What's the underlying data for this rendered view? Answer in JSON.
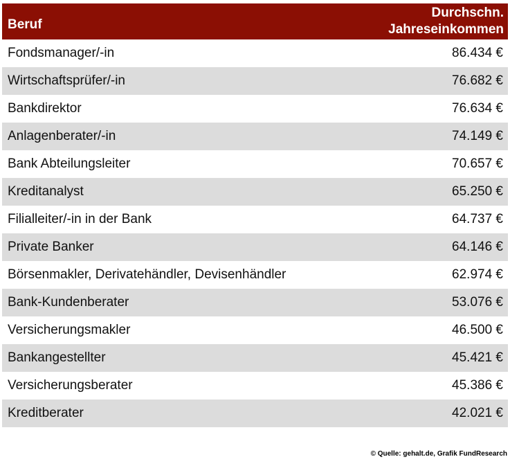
{
  "colors": {
    "header_bg": "#8B0F04",
    "header_text": "#FFFFFF",
    "row_bg": "#FFFFFF",
    "row_alt_bg": "#DCDCDC",
    "text": "#111111"
  },
  "table": {
    "header": {
      "profession": "Beruf",
      "income": "Durchschn. Jahreseinkommen"
    },
    "rows": [
      {
        "beruf": "Fondsmanager/-in",
        "einkommen": "86.434 €"
      },
      {
        "beruf": "Wirtschaftsprüfer/-in",
        "einkommen": "76.682 €"
      },
      {
        "beruf": "Bankdirektor",
        "einkommen": "76.634 €"
      },
      {
        "beruf": "Anlagenberater/-in",
        "einkommen": "74.149 €"
      },
      {
        "beruf": "Bank Abteilungsleiter",
        "einkommen": "70.657 €"
      },
      {
        "beruf": "Kreditanalyst",
        "einkommen": "65.250 €"
      },
      {
        "beruf": "Filialleiter/-in in der Bank",
        "einkommen": "64.737 €"
      },
      {
        "beruf": "Private Banker",
        "einkommen": "64.146 €"
      },
      {
        "beruf": "Börsenmakler, Derivatehändler, Devisenhändler",
        "einkommen": "62.974 €"
      },
      {
        "beruf": "Bank-Kundenberater",
        "einkommen": "53.076 €"
      },
      {
        "beruf": "Versicherungsmakler",
        "einkommen": "46.500 €"
      },
      {
        "beruf": "Bankangestellter",
        "einkommen": "45.421 €"
      },
      {
        "beruf": "Versicherungsberater",
        "einkommen": "45.386 €"
      },
      {
        "beruf": "Kreditberater",
        "einkommen": "42.021 €"
      }
    ]
  },
  "footer": {
    "source": "© Quelle: gehalt.de, Grafik FundResearch"
  },
  "chart_data": {
    "type": "table",
    "title": "",
    "columns": [
      "Beruf",
      "Durchschn. Jahreseinkommen"
    ],
    "categories": [
      "Fondsmanager/-in",
      "Wirtschaftsprüfer/-in",
      "Bankdirektor",
      "Anlagenberater/-in",
      "Bank Abteilungsleiter",
      "Kreditanalyst",
      "Filialleiter/-in in der Bank",
      "Private Banker",
      "Börsenmakler, Derivatehändler, Devisenhändler",
      "Bank-Kundenberater",
      "Versicherungsmakler",
      "Bankangestellter",
      "Versicherungsberater",
      "Kreditberater"
    ],
    "values_eur": [
      86434,
      76682,
      76634,
      74149,
      70657,
      65250,
      64737,
      64146,
      62974,
      53076,
      46500,
      45421,
      45386,
      42021
    ],
    "value_labels": [
      "86.434 €",
      "76.682 €",
      "76.634 €",
      "74.149 €",
      "70.657 €",
      "65.250 €",
      "64.737 €",
      "64.146 €",
      "62.974 €",
      "53.076 €",
      "46.500 €",
      "45.421 €",
      "45.386 €",
      "42.021 €"
    ],
    "source": "© Quelle: gehalt.de, Grafik FundResearch"
  }
}
